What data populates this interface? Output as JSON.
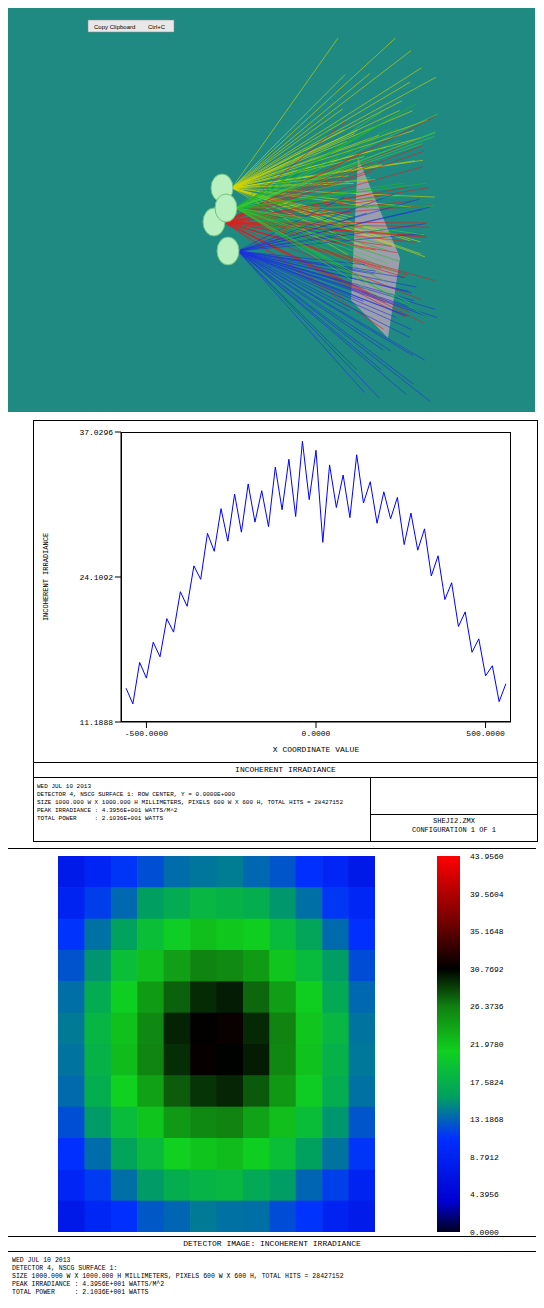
{
  "render_view": {
    "menu_item": "Copy Clipboard",
    "shortcut": "Ctrl+C"
  },
  "chart_data": [
    {
      "type": "line",
      "y_label": "INCOHERENT IRRADIANCE",
      "x_label": "X COORDINATE VALUE",
      "footer_title": "INCOHERENT IRRADIANCE",
      "info_lines": [
        "WED JUL 10 2013",
        "DETECTOR 4, NSCG SURFACE 1: ROW CENTER, Y = 0.0000E+000",
        "SIZE 1000.000 W X 1000.000 H MILLIMETERS, PIXELS 600 W X 600 H, TOTAL HITS = 28427152",
        "PEAK IRRADIANCE : 4.3956E+001 WATTS/M^2",
        "TOTAL POWER     : 2.1036E+001 WATTS"
      ],
      "file_name": "SHEJI2.ZMX",
      "configuration": "CONFIGURATION 1 OF 1",
      "x": [
        -560,
        -540,
        -520,
        -500,
        -480,
        -460,
        -440,
        -420,
        -400,
        -380,
        -360,
        -340,
        -320,
        -300,
        -280,
        -260,
        -240,
        -220,
        -200,
        -180,
        -160,
        -140,
        -120,
        -100,
        -80,
        -60,
        -40,
        -20,
        0,
        20,
        40,
        60,
        80,
        100,
        120,
        140,
        160,
        180,
        200,
        220,
        240,
        260,
        280,
        300,
        320,
        340,
        360,
        380,
        400,
        420,
        440,
        460,
        480,
        500,
        520,
        540,
        560
      ],
      "series": [
        {
          "name": "INCOHERENT IRRADIANCE",
          "color": "#0000ff",
          "values": [
            14.2,
            12.8,
            16.5,
            15.1,
            18.3,
            17.0,
            20.4,
            19.2,
            22.8,
            21.5,
            25.1,
            23.9,
            28.0,
            26.4,
            30.2,
            27.3,
            31.5,
            28.1,
            32.4,
            29.0,
            31.8,
            28.6,
            33.9,
            30.1,
            34.6,
            29.5,
            36.2,
            31.0,
            35.4,
            27.2,
            34.1,
            30.3,
            33.2,
            29.4,
            35.0,
            30.7,
            32.6,
            28.9,
            31.7,
            29.3,
            31.2,
            27.0,
            29.8,
            26.5,
            28.4,
            24.2,
            26.0,
            22.1,
            23.6,
            19.7,
            21.0,
            17.4,
            18.6,
            15.3,
            16.2,
            13.0,
            14.6
          ]
        }
      ],
      "xlim": [
        -575,
        575
      ],
      "xticks": [
        {
          "value": -500,
          "label": "-500.0000"
        },
        {
          "value": 0,
          "label": "0.0000"
        },
        {
          "value": 500,
          "label": "500.0000"
        }
      ],
      "ylim": [
        11.1888,
        37.0296
      ],
      "yticks": [
        11.1888,
        24.1092,
        37.0296
      ],
      "grid": false
    },
    {
      "type": "heatmap",
      "title": "DETECTOR IMAGE: INCOHERENT IRRADIANCE",
      "info_lines": [
        "WED JUL 10 2013",
        "DETECTOR 4, NSCG SURFACE 1:",
        "SIZE 1000.000 W X 1000.000 H MILLIMETERS, PIXELS 600 W X 600 H, TOTAL HITS = 28427152",
        "PEAK IRRADIANCE : 4.3956E+001 WATTS/M^2",
        "TOTAL POWER     : 2.1036E+001 WATTS"
      ],
      "tick_labels": false,
      "cells": [
        [
          7.6,
          9.1,
          11.2,
          12.3,
          13.6,
          14.0,
          14.3,
          13.4,
          12.6,
          10.8,
          9.3,
          7.4
        ],
        [
          9.0,
          11.6,
          13.4,
          15.8,
          17.0,
          18.2,
          17.8,
          17.3,
          15.4,
          13.7,
          11.3,
          9.4
        ],
        [
          11.1,
          13.8,
          16.0,
          19.2,
          20.8,
          22.3,
          21.7,
          21.2,
          18.8,
          16.4,
          13.5,
          10.9
        ],
        [
          12.5,
          15.3,
          19.1,
          22.2,
          24.3,
          26.1,
          25.7,
          24.6,
          21.8,
          18.8,
          15.7,
          12.2
        ],
        [
          13.7,
          17.1,
          20.9,
          24.6,
          27.4,
          29.3,
          29.8,
          27.2,
          24.4,
          21.2,
          16.9,
          13.4
        ],
        [
          14.2,
          18.1,
          22.1,
          25.8,
          29.6,
          30.9,
          31.2,
          29.4,
          26.2,
          21.8,
          18.3,
          13.9
        ],
        [
          13.9,
          17.8,
          22.4,
          26.0,
          29.2,
          31.1,
          30.7,
          29.8,
          25.9,
          22.0,
          17.7,
          14.1
        ],
        [
          13.5,
          17.3,
          21.1,
          24.2,
          27.6,
          29.0,
          29.5,
          27.7,
          24.8,
          20.7,
          17.2,
          13.8
        ],
        [
          12.3,
          15.6,
          18.9,
          21.9,
          24.7,
          25.8,
          26.2,
          24.1,
          22.3,
          19.0,
          15.4,
          12.6
        ],
        [
          10.8,
          13.6,
          16.3,
          18.7,
          21.1,
          21.9,
          22.4,
          20.9,
          19.1,
          15.9,
          13.9,
          11.2
        ],
        [
          9.3,
          11.4,
          13.7,
          15.6,
          17.3,
          17.9,
          18.3,
          16.8,
          15.7,
          13.3,
          11.7,
          9.0
        ],
        [
          7.3,
          9.4,
          10.9,
          12.7,
          13.3,
          14.2,
          13.8,
          13.7,
          12.2,
          11.1,
          8.9,
          7.7
        ]
      ],
      "colorbar_range": [
        0,
        43.956
      ],
      "colorbar_ticks": [
        {
          "value": 43.956,
          "label": "43.9560"
        },
        {
          "value": 39.5604,
          "label": "39.5604"
        },
        {
          "value": 35.1648,
          "label": "35.1648"
        },
        {
          "value": 30.7692,
          "label": "30.7692"
        },
        {
          "value": 26.3736,
          "label": "26.3736"
        },
        {
          "value": 21.978,
          "label": "21.9780"
        },
        {
          "value": 17.5824,
          "label": "17.5824"
        },
        {
          "value": 13.1868,
          "label": "13.1868"
        },
        {
          "value": 8.7912,
          "label": "8.7912"
        },
        {
          "value": 4.3956,
          "label": "4.3956"
        },
        {
          "value": 0,
          "label": "0.0000"
        }
      ]
    }
  ]
}
